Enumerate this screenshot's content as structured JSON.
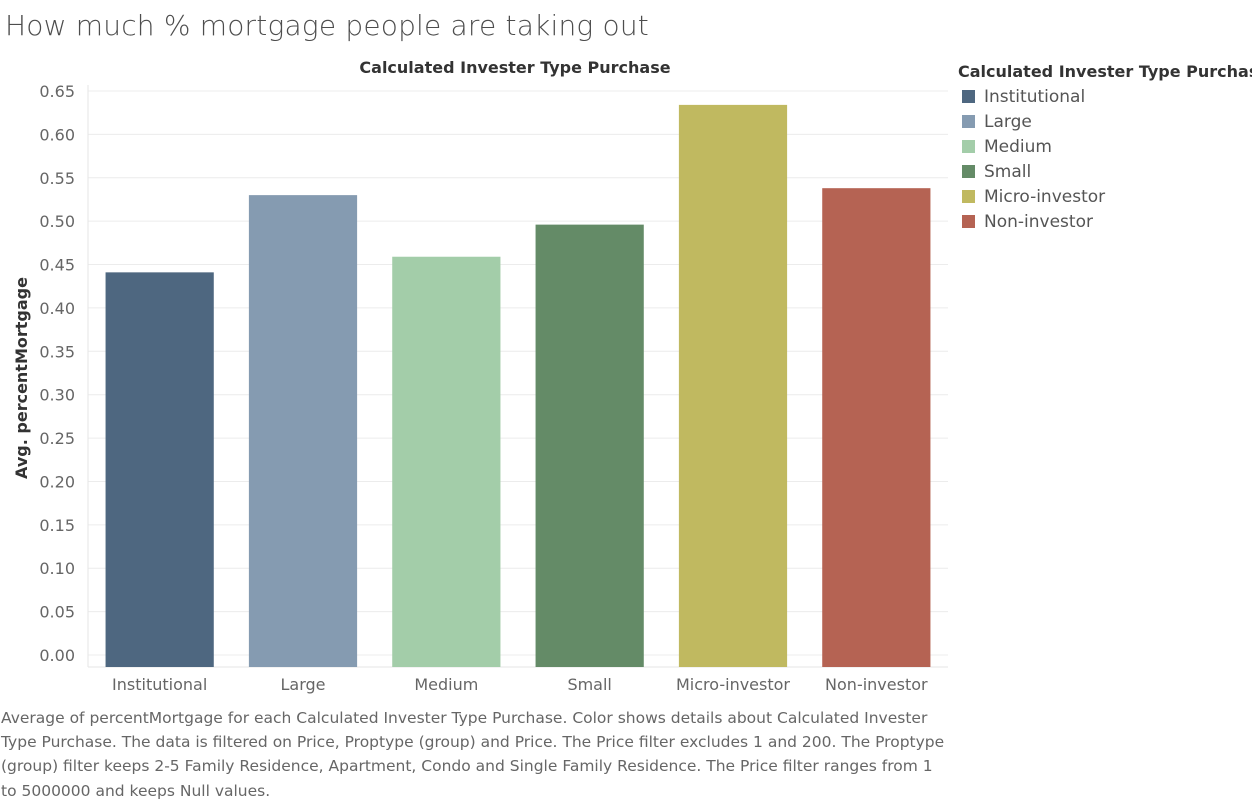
{
  "page": {
    "title": "How much % mortgage  people are taking out"
  },
  "caption": "Average of percentMortgage for each Calculated Invester Type Purchase.  Color shows details about Calculated Invester Type Purchase. The data is filtered on Price, Proptype (group) and Price. The Price filter excludes 1 and 200. The Proptype (group) filter keeps 2-5 Family Residence, Apartment, Condo and Single Family Residence. The Price filter ranges from 1 to 5000000 and keeps Null values.",
  "legend": {
    "title": "Calculated Invester Type Purchase",
    "placement": "right",
    "items": [
      {
        "label": "Institutional",
        "color": "#4e6780"
      },
      {
        "label": "Large",
        "color": "#859bb1"
      },
      {
        "label": "Medium",
        "color": "#a3cda9"
      },
      {
        "label": "Small",
        "color": "#648b67"
      },
      {
        "label": "Micro-investor",
        "color": "#c0b960"
      },
      {
        "label": "Non-investor",
        "color": "#b56353"
      }
    ]
  },
  "chart_data": {
    "type": "bar",
    "title": "Calculated Invester Type Purchase",
    "xlabel": "",
    "ylabel": "Avg. percentMortgage",
    "ylim": [
      0,
      0.65
    ],
    "ytick_step": 0.05,
    "grid": true,
    "categories": [
      "Institutional",
      "Large",
      "Medium",
      "Small",
      "Micro-investor",
      "Non-investor"
    ],
    "values": [
      0.441,
      0.53,
      0.459,
      0.496,
      0.634,
      0.538
    ],
    "colors": [
      "#4e6780",
      "#859bb1",
      "#a3cda9",
      "#648b67",
      "#c0b960",
      "#b56353"
    ]
  }
}
